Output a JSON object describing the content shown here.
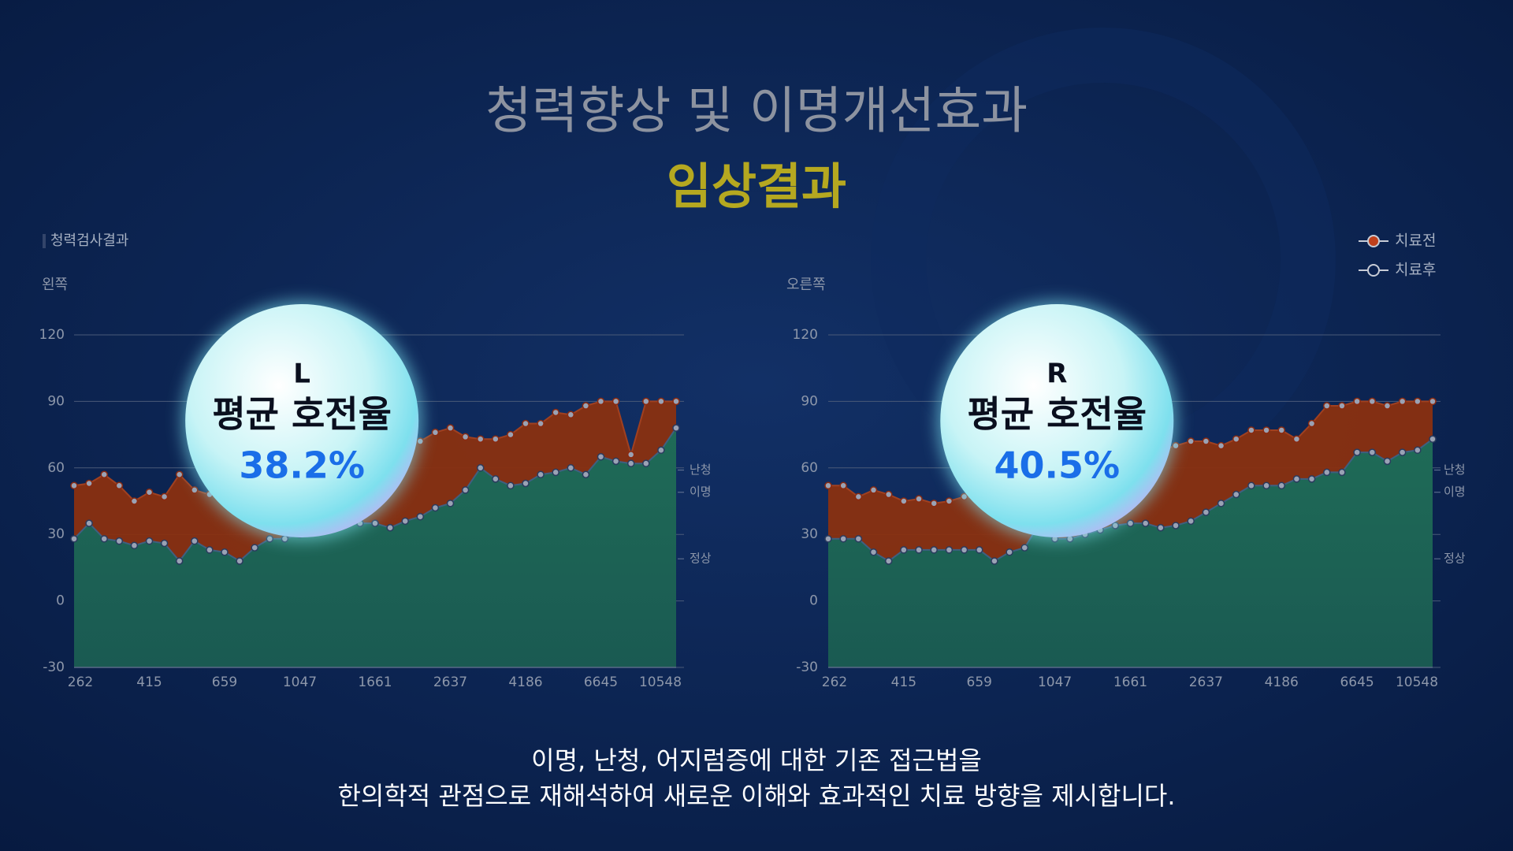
{
  "header": {
    "title": "청력향상 및 이명개선효과",
    "subtitle": "임상결과",
    "section": "청력검사결과"
  },
  "chart_data": [
    {
      "type": "area",
      "side_label": "왼쪽",
      "bubble": {
        "letter": "L",
        "label": "평균 호전율",
        "value_text": "38.2%"
      },
      "categories": [
        "262",
        null,
        null,
        null,
        null,
        "415",
        null,
        null,
        null,
        null,
        "659",
        null,
        null,
        null,
        null,
        "1047",
        null,
        null,
        null,
        null,
        "1661",
        null,
        null,
        null,
        null,
        "2637",
        null,
        null,
        null,
        null,
        "4186",
        null,
        null,
        null,
        null,
        "6645",
        null,
        null,
        null,
        null,
        "10548"
      ],
      "series": [
        {
          "name": "치료전",
          "color": "#8a3010",
          "values": [
            52,
            53,
            57,
            52,
            45,
            49,
            47,
            57,
            50,
            48,
            48,
            47,
            45,
            46,
            50,
            55,
            58,
            60,
            62,
            64,
            66,
            68,
            70,
            72,
            76,
            78,
            74,
            73,
            73,
            75,
            80,
            80,
            85,
            84,
            88,
            90,
            90,
            66,
            90,
            90,
            90
          ]
        },
        {
          "name": "치료후",
          "color": "#1f6b57",
          "values": [
            28,
            35,
            28,
            27,
            25,
            27,
            26,
            18,
            27,
            23,
            22,
            18,
            24,
            28,
            28,
            30,
            32,
            33,
            34,
            35,
            35,
            33,
            36,
            38,
            42,
            44,
            50,
            60,
            55,
            52,
            53,
            57,
            58,
            60,
            57,
            65,
            63,
            62,
            62,
            68,
            78
          ]
        }
      ],
      "ylim": [
        -30,
        120
      ],
      "yticks": [
        -30,
        0,
        30,
        60,
        90,
        120
      ],
      "grid": true,
      "annotations": [
        {
          "text": "난청",
          "y": 59
        },
        {
          "text": "이명",
          "y": 49
        },
        {
          "text": "정상",
          "y": 19
        }
      ]
    },
    {
      "type": "area",
      "side_label": "오른쪽",
      "bubble": {
        "letter": "R",
        "label": "평균 호전율",
        "value_text": "40.5%"
      },
      "categories": [
        "262",
        null,
        null,
        null,
        null,
        "415",
        null,
        null,
        null,
        null,
        "659",
        null,
        null,
        null,
        null,
        "1047",
        null,
        null,
        null,
        null,
        "1661",
        null,
        null,
        null,
        null,
        "2637",
        null,
        null,
        null,
        null,
        "4186",
        null,
        null,
        null,
        null,
        "6645",
        null,
        null,
        null,
        null,
        "10548"
      ],
      "series": [
        {
          "name": "치료전",
          "color": "#8a3010",
          "values": [
            52,
            52,
            47,
            50,
            48,
            45,
            46,
            44,
            45,
            47,
            46,
            50,
            52,
            55,
            60,
            58,
            56,
            55,
            60,
            62,
            64,
            66,
            68,
            70,
            72,
            72,
            70,
            73,
            77,
            77,
            77,
            73,
            80,
            88,
            88,
            90,
            90,
            88,
            90,
            90,
            90
          ]
        },
        {
          "name": "치료후",
          "color": "#1f6b57",
          "values": [
            28,
            28,
            28,
            22,
            18,
            23,
            23,
            23,
            23,
            23,
            23,
            18,
            22,
            24,
            35,
            28,
            28,
            30,
            32,
            34,
            35,
            35,
            33,
            34,
            36,
            40,
            44,
            48,
            52,
            52,
            52,
            55,
            55,
            58,
            58,
            67,
            67,
            63,
            67,
            68,
            73
          ]
        }
      ],
      "ylim": [
        -30,
        120
      ],
      "yticks": [
        -30,
        0,
        30,
        60,
        90,
        120
      ],
      "grid": true,
      "annotations": [
        {
          "text": "난청",
          "y": 59
        },
        {
          "text": "이명",
          "y": 49
        },
        {
          "text": "정상",
          "y": 19
        }
      ]
    }
  ],
  "footer": {
    "lines": [
      "이명, 난청, 어지럼증에 대한 기존 접근법을",
      "한의학적 관점으로 재해석하여 새로운 이해와 효과적인 치료 방향을 제시합니다."
    ]
  }
}
